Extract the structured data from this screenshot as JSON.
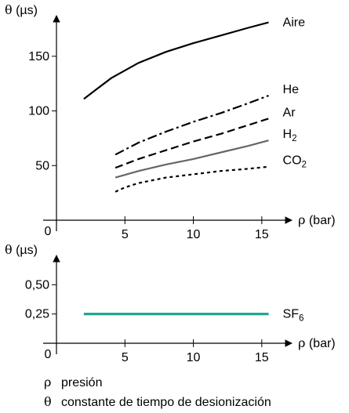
{
  "chart_data": [
    {
      "type": "line",
      "ylabel_symbol": "θ",
      "ylabel_unit": "(µs)",
      "xlabel_symbol": "ρ",
      "xlabel_unit": "(bar)",
      "xlim": [
        0,
        16.5
      ],
      "ylim": [
        0,
        190
      ],
      "x_ticks": [
        5,
        10,
        15
      ],
      "y_ticks": [
        50,
        100,
        150
      ],
      "origin_label": "0",
      "accent": "#000000",
      "series": [
        {
          "name": "Aire",
          "sub": "",
          "style": "solid",
          "color": "#000000",
          "x": [
            2,
            4,
            6,
            8,
            10,
            12,
            14,
            15.5
          ],
          "y": [
            111,
            130,
            144,
            154,
            162,
            169,
            176,
            181
          ]
        },
        {
          "name": "He",
          "sub": "",
          "style": "dashdot",
          "color": "#000000",
          "x": [
            4.3,
            6,
            8,
            10,
            12,
            14,
            15.5
          ],
          "y": [
            60,
            71,
            81,
            90,
            98,
            107,
            114
          ]
        },
        {
          "name": "Ar",
          "sub": "",
          "style": "dashed",
          "color": "#000000",
          "x": [
            4.3,
            6,
            8,
            10,
            12,
            14,
            15.5
          ],
          "y": [
            48,
            56,
            64,
            72,
            79,
            87,
            93
          ]
        },
        {
          "name": "H",
          "sub": "2",
          "style": "solid",
          "color": "#666666",
          "x": [
            4.3,
            6,
            8,
            10,
            12,
            14,
            15.5
          ],
          "y": [
            39,
            45,
            51,
            56,
            62,
            68,
            73
          ]
        },
        {
          "name": "CO",
          "sub": "2",
          "style": "dotted",
          "color": "#000000",
          "x": [
            4.3,
            5,
            6,
            8,
            10,
            12,
            14,
            15.5
          ],
          "y": [
            26,
            30,
            34,
            39,
            42,
            45,
            47,
            49
          ]
        }
      ]
    },
    {
      "type": "line",
      "ylabel_symbol": "θ",
      "ylabel_unit": "(µs)",
      "xlabel_symbol": "ρ",
      "xlabel_unit": "(bar)",
      "xlim": [
        0,
        16.5
      ],
      "ylim": [
        0,
        0.75
      ],
      "x_ticks": [
        5,
        10,
        15
      ],
      "y_ticks": [
        0.25,
        0.5
      ],
      "y_tick_labels": [
        "0,25",
        "0,50"
      ],
      "origin_label": "0",
      "series": [
        {
          "name": "SF",
          "sub": "6",
          "style": "solid",
          "color": "#1aa38a",
          "x": [
            2,
            15.5
          ],
          "y": [
            0.25,
            0.25
          ]
        }
      ]
    }
  ],
  "legend": [
    {
      "symbol": "ρ",
      "text": "presión"
    },
    {
      "symbol": "θ",
      "text": "constante de tiempo de desionización"
    }
  ]
}
